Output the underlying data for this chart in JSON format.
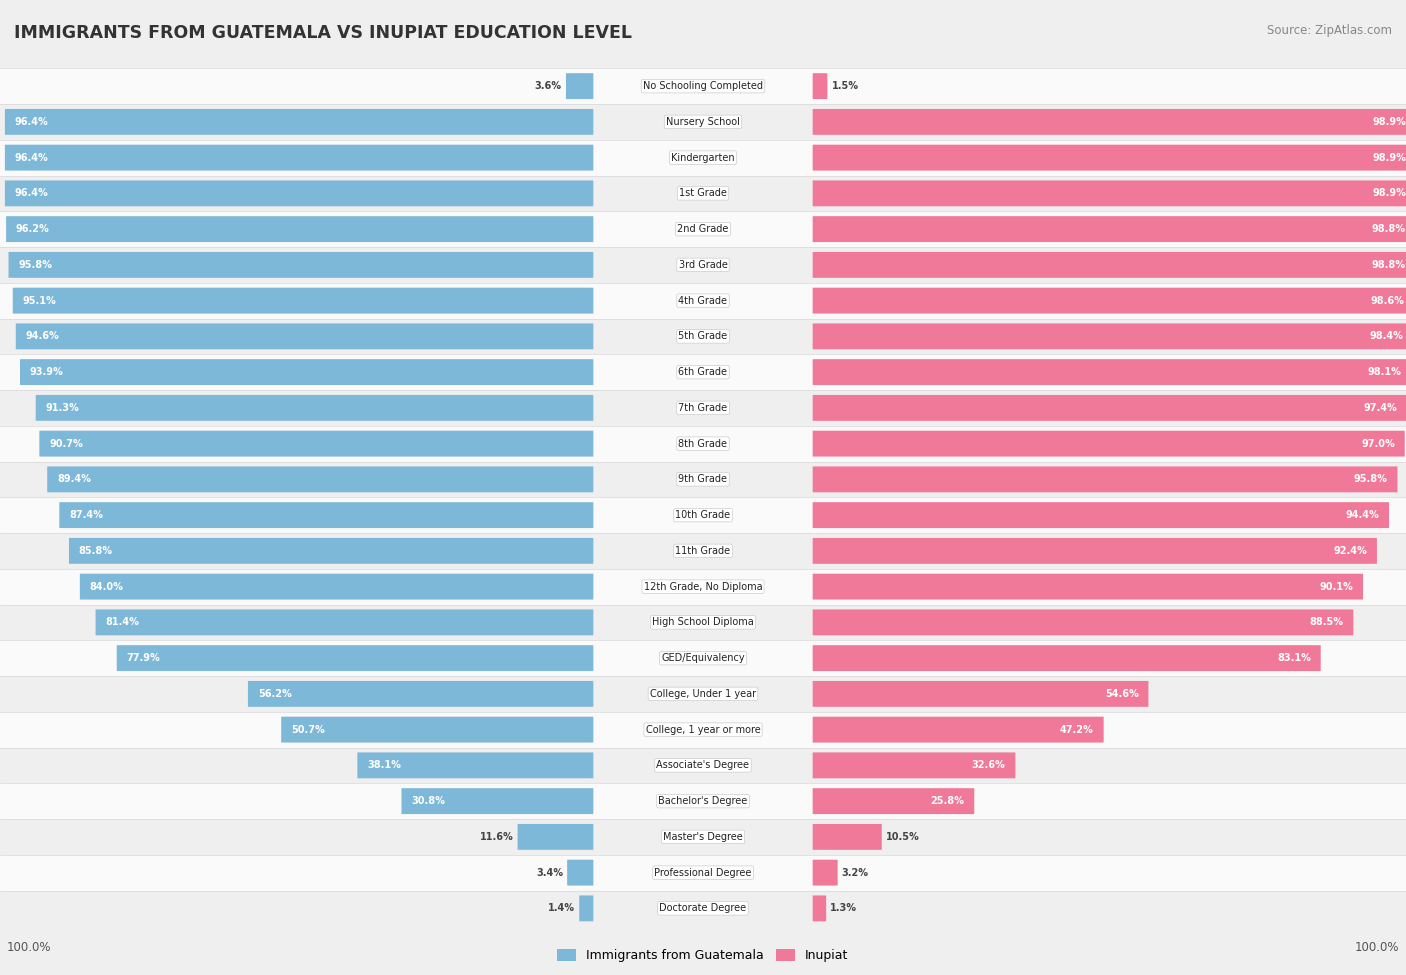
{
  "title": "IMMIGRANTS FROM GUATEMALA VS INUPIAT EDUCATION LEVEL",
  "source": "Source: ZipAtlas.com",
  "categories": [
    "No Schooling Completed",
    "Nursery School",
    "Kindergarten",
    "1st Grade",
    "2nd Grade",
    "3rd Grade",
    "4th Grade",
    "5th Grade",
    "6th Grade",
    "7th Grade",
    "8th Grade",
    "9th Grade",
    "10th Grade",
    "11th Grade",
    "12th Grade, No Diploma",
    "High School Diploma",
    "GED/Equivalency",
    "College, Under 1 year",
    "College, 1 year or more",
    "Associate's Degree",
    "Bachelor's Degree",
    "Master's Degree",
    "Professional Degree",
    "Doctorate Degree"
  ],
  "guatemala_values": [
    3.6,
    96.4,
    96.4,
    96.4,
    96.2,
    95.8,
    95.1,
    94.6,
    93.9,
    91.3,
    90.7,
    89.4,
    87.4,
    85.8,
    84.0,
    81.4,
    77.9,
    56.2,
    50.7,
    38.1,
    30.8,
    11.6,
    3.4,
    1.4
  ],
  "inupiat_values": [
    1.5,
    98.9,
    98.9,
    98.9,
    98.8,
    98.8,
    98.6,
    98.4,
    98.1,
    97.4,
    97.0,
    95.8,
    94.4,
    92.4,
    90.1,
    88.5,
    83.1,
    54.6,
    47.2,
    32.6,
    25.8,
    10.5,
    3.2,
    1.3
  ],
  "guatemala_color": "#7db8d8",
  "inupiat_color": "#f07898",
  "background_color": "#efefef",
  "row_bg_light": "#fafafa",
  "row_bg_dark": "#efefef",
  "legend_guatemala": "Immigrants from Guatemala",
  "legend_inupiat": "Inupiat",
  "bottom_left_label": "100.0%",
  "bottom_right_label": "100.0%",
  "value_threshold_inside": 15
}
